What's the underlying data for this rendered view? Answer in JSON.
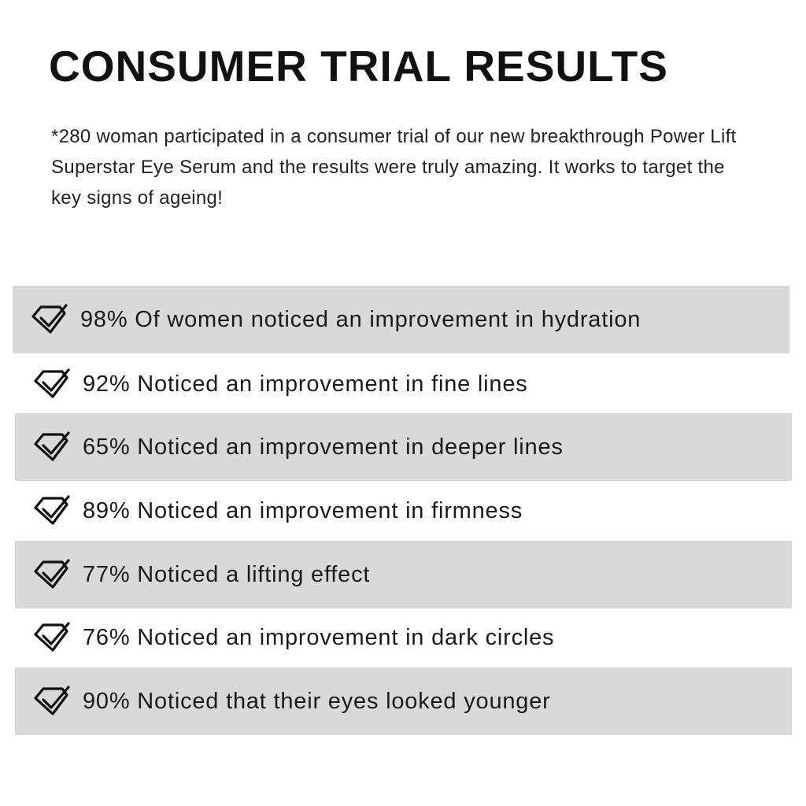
{
  "title": "CONSUMER TRIAL RESULTS",
  "intro": "*280 woman participated in a consumer trial of our new breakthrough Power Lift Superstar Eye Serum and the results were truly amazing. It works to target the key signs of ageing!",
  "band_color": "#d9d9d9",
  "results": [
    {
      "icon": "diamond-check-icon",
      "text": "98% Of women noticed an improvement in hydration",
      "shaded": true
    },
    {
      "icon": "diamond-check-icon",
      "text": "92% Noticed an improvement in fine lines",
      "shaded": false
    },
    {
      "icon": "diamond-check-icon",
      "text": "65% Noticed an improvement in deeper lines",
      "shaded": true
    },
    {
      "icon": "diamond-check-icon",
      "text": "89% Noticed an improvement in firmness",
      "shaded": false
    },
    {
      "icon": "diamond-check-icon",
      "text": "77% Noticed a lifting effect",
      "shaded": true
    },
    {
      "icon": "diamond-check-icon",
      "text": "76% Noticed an improvement in dark circles",
      "shaded": false
    },
    {
      "icon": "diamond-check-icon",
      "text": "90% Noticed that their eyes looked younger",
      "shaded": true
    }
  ]
}
